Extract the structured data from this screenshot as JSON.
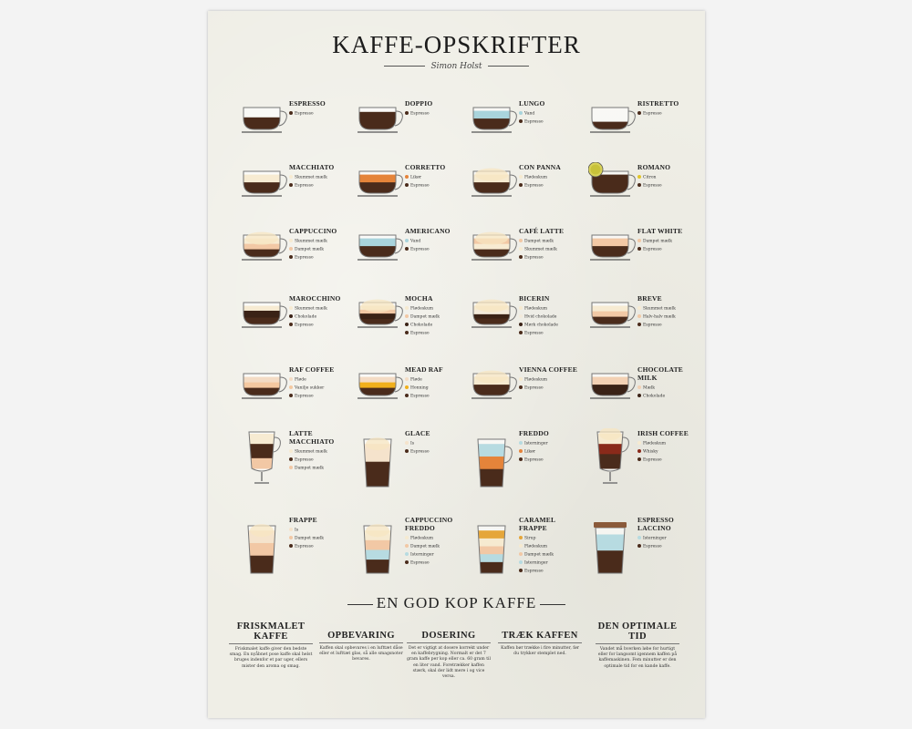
{
  "title": "KAFFE-OPSKRIFTER",
  "subtitle": "Simon Holst",
  "colors": {
    "Espresso": "#4a2b1b",
    "Vand": "#a9d4dc",
    "Skummet mælk": "#f7ebd2",
    "Dampet mælk": "#f2c8a5",
    "Likør": "#e5843a",
    "Flødeskum": "#f6ead0",
    "Citron": "#e2c52a",
    "Chokolade": "#3a2216",
    "Hvid chokolade": "#f3eadb",
    "Mørk chokolade": "#3a2216",
    "Fløde": "#f4dcc5",
    "Vanilje sukker": "#f4c8a0",
    "Honning": "#f1b01c",
    "Mælk": "#f3d1b4",
    "Is": "#f5e3cc",
    "Isterninger": "#b7dbe1",
    "Whisky": "#8a2a1a",
    "Sirup": "#e5a63a",
    "Halv-halv mælk": "#f2c9a6"
  },
  "drinks": [
    {
      "name": "Espresso",
      "vessel": "cup",
      "ingredients": [
        "Espresso"
      ]
    },
    {
      "name": "Doppio",
      "vessel": "cup",
      "ingredients": [
        "Espresso"
      ]
    },
    {
      "name": "Lungo",
      "vessel": "cup",
      "ingredients": [
        "Vand",
        "Espresso"
      ]
    },
    {
      "name": "Ristretto",
      "vessel": "cup",
      "ingredients": [
        "Espresso"
      ]
    },
    {
      "name": "Macchiato",
      "vessel": "cup",
      "ingredients": [
        "Skummet mælk",
        "Espresso"
      ]
    },
    {
      "name": "Corretto",
      "vessel": "cup",
      "ingredients": [
        "Likør",
        "Espresso"
      ]
    },
    {
      "name": "Con Panna",
      "vessel": "cup",
      "ingredients": [
        "Flødeskum",
        "Espresso"
      ]
    },
    {
      "name": "Romano",
      "vessel": "cup",
      "ingredients": [
        "Citron",
        "Espresso"
      ]
    },
    {
      "name": "Cappuccino",
      "vessel": "cup",
      "ingredients": [
        "Skummet mælk",
        "Dampet mælk",
        "Espresso"
      ]
    },
    {
      "name": "Americano",
      "vessel": "cup",
      "ingredients": [
        "Vand",
        "Espresso"
      ]
    },
    {
      "name": "Café Latte",
      "vessel": "cup",
      "ingredients": [
        "Dampet mælk",
        "Skummet mælk",
        "Espresso"
      ]
    },
    {
      "name": "Flat White",
      "vessel": "cup",
      "ingredients": [
        "Dampet mælk",
        "Espresso"
      ]
    },
    {
      "name": "Marocchino",
      "vessel": "cup",
      "ingredients": [
        "Skummet mælk",
        "Chokolade",
        "Espresso"
      ]
    },
    {
      "name": "Mocha",
      "vessel": "cup",
      "ingredients": [
        "Flødeskum",
        "Dampet mælk",
        "Chokolade",
        "Espresso"
      ]
    },
    {
      "name": "Bicerin",
      "vessel": "cup",
      "ingredients": [
        "Flødeskum",
        "Hvid chokolade",
        "Mørk chokolade",
        "Espresso"
      ]
    },
    {
      "name": "Breve",
      "vessel": "cup",
      "ingredients": [
        "Skummet mælk",
        "Halv-halv mælk",
        "Espresso"
      ]
    },
    {
      "name": "Raf Coffee",
      "vessel": "cup",
      "ingredients": [
        "Fløde",
        "Vanilje sukker",
        "Espresso"
      ]
    },
    {
      "name": "Mead Raf",
      "vessel": "cup",
      "ingredients": [
        "Fløde",
        "Honning",
        "Espresso"
      ]
    },
    {
      "name": "Vienna Coffee",
      "vessel": "cup",
      "ingredients": [
        "Flødeskum",
        "Espresso"
      ]
    },
    {
      "name": "Chocolate Milk",
      "vessel": "cup",
      "ingredients": [
        "Mælk",
        "Chokolade"
      ]
    },
    {
      "name": "Latte Macchiato",
      "vessel": "irish",
      "ingredients": [
        "Skummet mælk",
        "Espresso",
        "Dampet mælk"
      ]
    },
    {
      "name": "Glace",
      "vessel": "glass",
      "ingredients": [
        "Is",
        "Espresso"
      ]
    },
    {
      "name": "Freddo",
      "vessel": "mugglass",
      "ingredients": [
        "Isterninger",
        "Likør",
        "Espresso"
      ]
    },
    {
      "name": "Irish Coffee",
      "vessel": "irish",
      "ingredients": [
        "Flødeskum",
        "Whisky",
        "Espresso"
      ]
    },
    {
      "name": "Frappe",
      "vessel": "glass",
      "ingredients": [
        "Is",
        "Dampet mælk",
        "Espresso"
      ]
    },
    {
      "name": "Cappuccino Freddo",
      "vessel": "glass",
      "ingredients": [
        "Flødeskum",
        "Dampet mælk",
        "Isterninger",
        "Espresso"
      ]
    },
    {
      "name": "Caramel Frappe",
      "vessel": "glass",
      "ingredients": [
        "Sirup",
        "Flødeskum",
        "Dampet mælk",
        "Isterninger",
        "Espresso"
      ]
    },
    {
      "name": "Espresso Laccino",
      "vessel": "takeaway",
      "ingredients": [
        "Isterninger",
        "Espresso"
      ]
    }
  ],
  "section_title": "EN GOD KOP KAFFE",
  "tips": [
    {
      "title": "FRISKMALET KAFFE",
      "text": "Friskmalet kaffe giver den bedste smag. En nyåbnet pose kaffe skal helst bruges indenfor et par uger, ellers mister den aroma og smag."
    },
    {
      "title": "OPBEVARING",
      "text": "Kaffen skal opbevares i en lufttæt dåse eller et lufttæt glas, så alle smagsnoter bevares."
    },
    {
      "title": "DOSERING",
      "text": "Det er vigtigt at dosere korrekt under en kaffebrygning. Normalt er det 7 gram kaffe per kop eller ca. 60 gram til en liter vand. Foretrækker kaffen stærk, skal der lidt mere i og vice versa."
    },
    {
      "title": "TRÆK KAFFEN",
      "text": "Kaffen bør trække i fire minutter, før du trykker stemplet ned."
    },
    {
      "title": "DEN OPTIMALE TID",
      "text": "Vandet må hverken løbe for hurtigt eller for langsomt igennem kaffen på kaffemaskinen. Fem minutter er den optimale tid for en kande kaffe."
    }
  ]
}
